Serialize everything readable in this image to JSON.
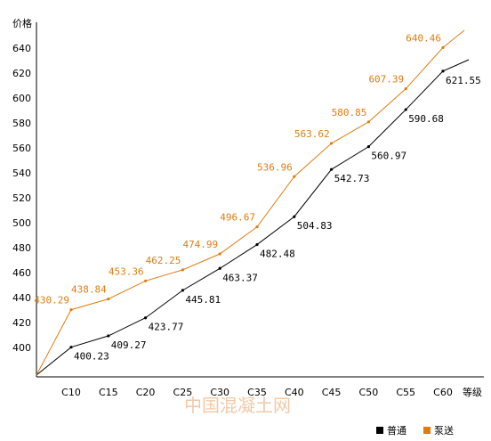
{
  "chart_data": {
    "type": "line",
    "ylabel": "价格",
    "xlabel": "等级",
    "categories": [
      "C10",
      "C15",
      "C20",
      "C25",
      "C30",
      "C35",
      "C40",
      "C45",
      "C50",
      "C55",
      "C60"
    ],
    "yticks": [
      400,
      420,
      440,
      460,
      480,
      500,
      520,
      540,
      560,
      580,
      600,
      620,
      640
    ],
    "series": [
      {
        "name": "普通",
        "color": "#000000",
        "labels": [
          "400.23",
          "409.27",
          "423.77",
          "445.81",
          "463.37",
          "482.48",
          "504.83",
          "542.73",
          "560.97",
          "590.68",
          "621.55"
        ],
        "values": [
          400.23,
          409.27,
          423.77,
          445.81,
          463.37,
          482.48,
          504.83,
          542.73,
          560.97,
          590.68,
          621.55
        ]
      },
      {
        "name": "泵送",
        "color": "#e07d10",
        "labels": [
          "430.29",
          "438.84",
          "453.36",
          "462.25",
          "474.99",
          "496.67",
          "536.96",
          "563.62",
          "580.85",
          "607.39",
          "640.46"
        ],
        "values": [
          430.29,
          438.84,
          453.36,
          462.25,
          474.99,
          496.67,
          536.96,
          563.62,
          580.85,
          607.39,
          640.46
        ]
      }
    ]
  },
  "watermark": "中国混凝土网"
}
